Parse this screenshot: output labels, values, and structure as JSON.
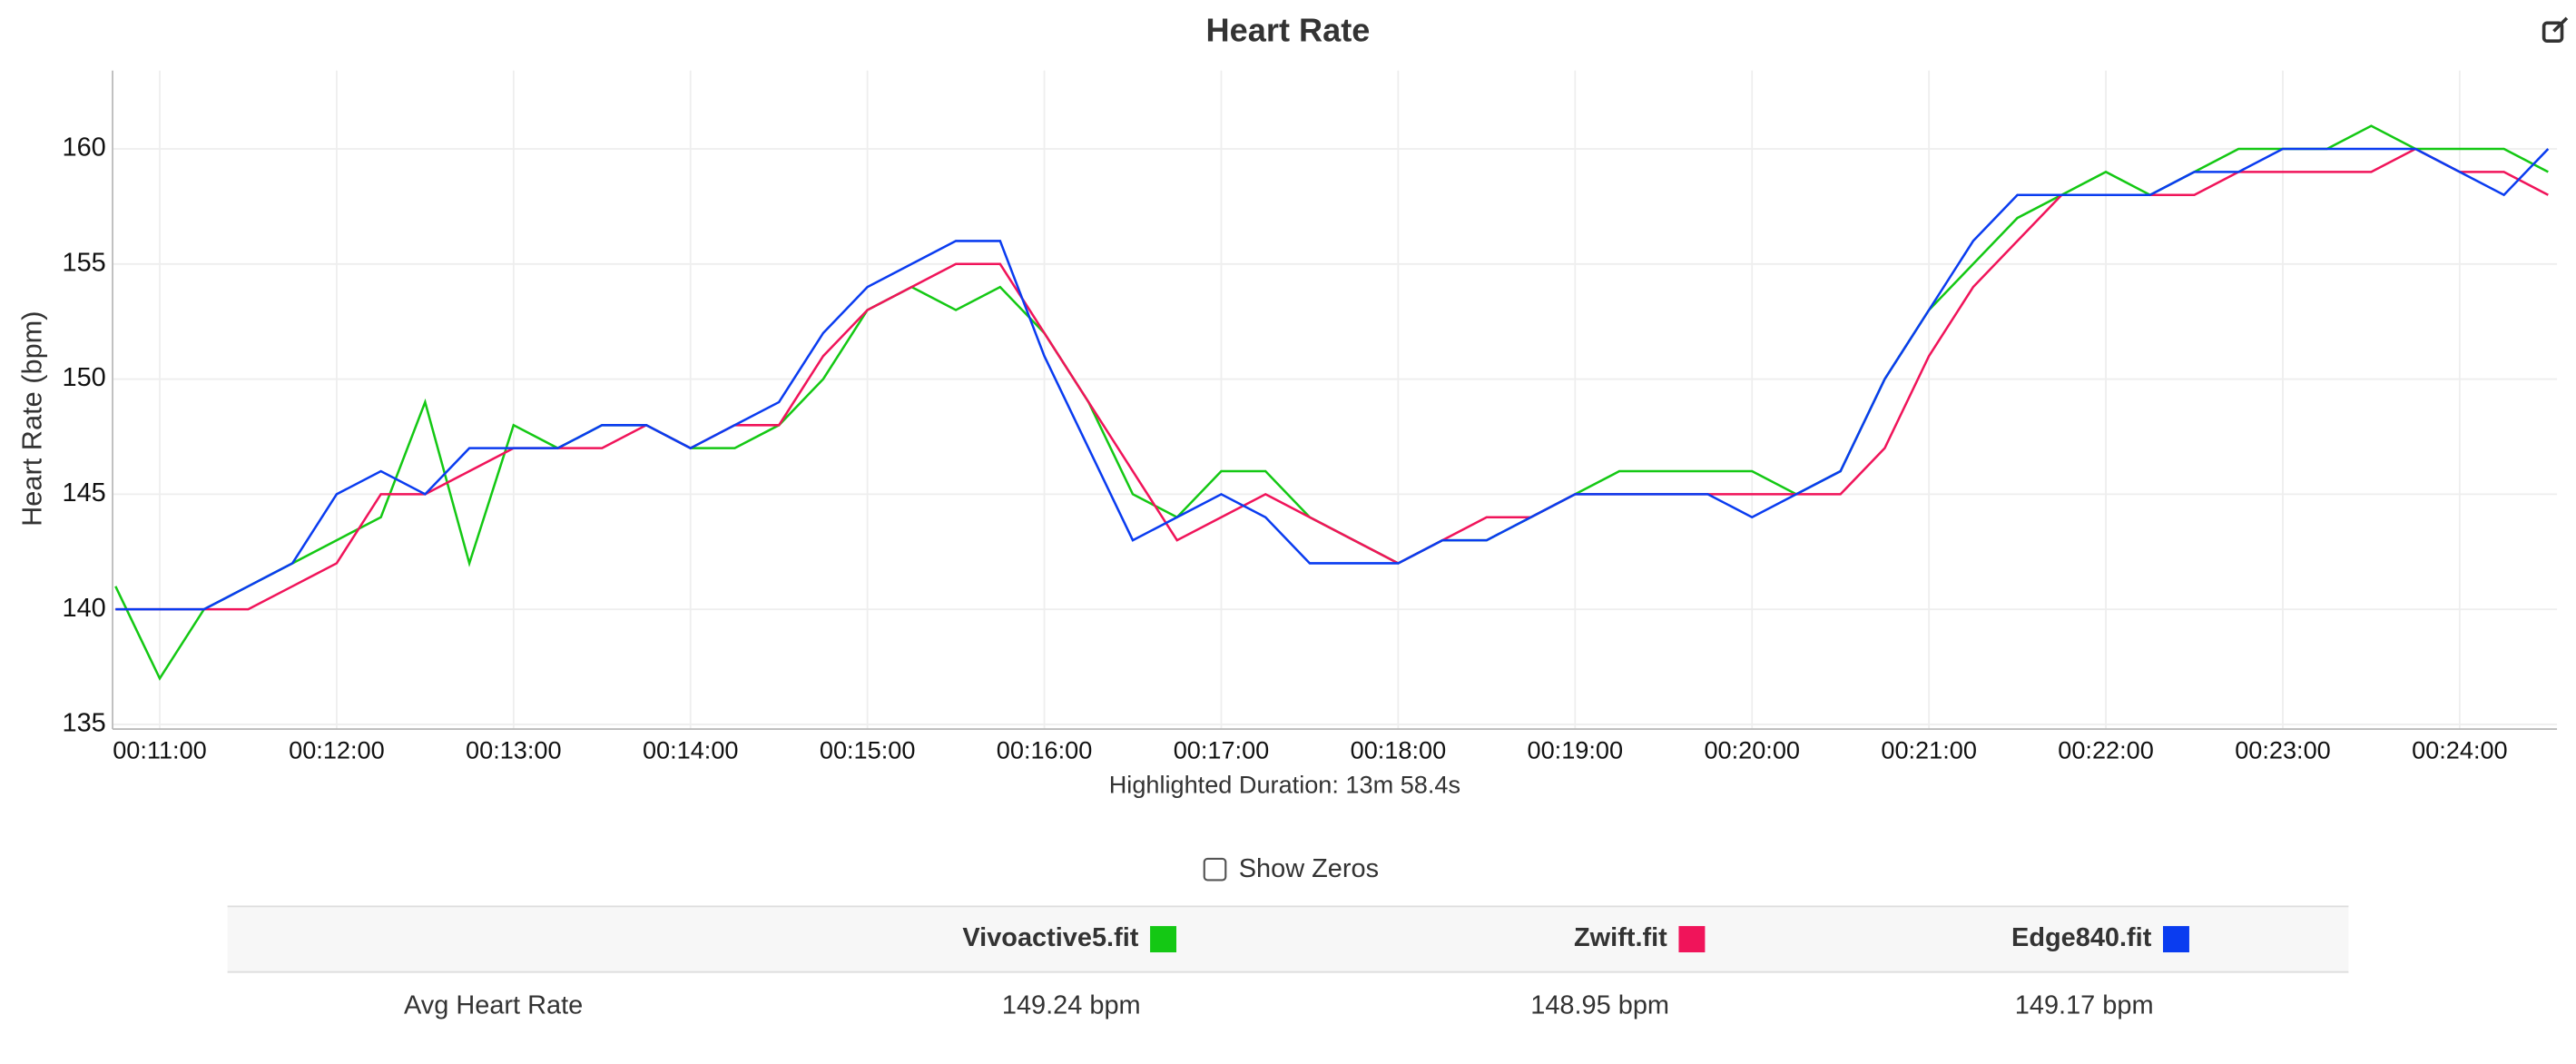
{
  "chart_data": {
    "type": "line",
    "title": "Heart Rate",
    "ylabel": "Heart Rate (bpm)",
    "xlabel": "Highlighted Duration: 13m 58.4s",
    "x": [
      645,
      660,
      675,
      690,
      705,
      720,
      735,
      750,
      765,
      780,
      795,
      810,
      825,
      840,
      855,
      870,
      885,
      900,
      915,
      930,
      945,
      960,
      975,
      990,
      1005,
      1020,
      1035,
      1050,
      1065,
      1080,
      1095,
      1110,
      1125,
      1140,
      1155,
      1170,
      1185,
      1200,
      1215,
      1230,
      1245,
      1260,
      1275,
      1290,
      1305,
      1320,
      1335,
      1350,
      1365,
      1380,
      1395,
      1410,
      1425,
      1440,
      1455,
      1470
    ],
    "series": [
      {
        "name": "Vivoactive5.fit",
        "color": "#14c814",
        "values": [
          141,
          137,
          140,
          141,
          142,
          143,
          144,
          149,
          142,
          148,
          147,
          148,
          148,
          147,
          147,
          148,
          150,
          153,
          154,
          153,
          154,
          152,
          149,
          145,
          144,
          146,
          146,
          144,
          143,
          142,
          143,
          143,
          144,
          145,
          146,
          146,
          146,
          146,
          145,
          146,
          150,
          153,
          155,
          157,
          158,
          159,
          158,
          159,
          160,
          160,
          160,
          161,
          160,
          160,
          160,
          159
        ]
      },
      {
        "name": "Zwift.fit",
        "color": "#f0145a",
        "values": [
          140,
          140,
          140,
          140,
          141,
          142,
          145,
          145,
          146,
          147,
          147,
          147,
          148,
          147,
          148,
          148,
          151,
          153,
          154,
          155,
          155,
          152,
          149,
          146,
          143,
          144,
          145,
          144,
          143,
          142,
          143,
          144,
          144,
          145,
          145,
          145,
          145,
          145,
          145,
          145,
          147,
          151,
          154,
          156,
          158,
          158,
          158,
          158,
          159,
          159,
          159,
          159,
          160,
          159,
          159,
          158
        ]
      },
      {
        "name": "Edge840.fit",
        "color": "#0a3cf0",
        "values": [
          140,
          140,
          140,
          141,
          142,
          145,
          146,
          145,
          147,
          147,
          147,
          148,
          148,
          147,
          148,
          149,
          152,
          154,
          155,
          156,
          156,
          151,
          147,
          143,
          144,
          145,
          144,
          142,
          142,
          142,
          143,
          143,
          144,
          145,
          145,
          145,
          145,
          144,
          145,
          146,
          150,
          153,
          156,
          158,
          158,
          158,
          158,
          159,
          159,
          160,
          160,
          160,
          160,
          159,
          158,
          160
        ]
      }
    ],
    "xlim": [
      644,
      1473
    ],
    "xticks": [
      {
        "value": 660,
        "label": "00:11:00"
      },
      {
        "value": 720,
        "label": "00:12:00"
      },
      {
        "value": 780,
        "label": "00:13:00"
      },
      {
        "value": 840,
        "label": "00:14:00"
      },
      {
        "value": 900,
        "label": "00:15:00"
      },
      {
        "value": 960,
        "label": "00:16:00"
      },
      {
        "value": 1020,
        "label": "00:17:00"
      },
      {
        "value": 1080,
        "label": "00:18:00"
      },
      {
        "value": 1140,
        "label": "00:19:00"
      },
      {
        "value": 1200,
        "label": "00:20:00"
      },
      {
        "value": 1260,
        "label": "00:21:00"
      },
      {
        "value": 1320,
        "label": "00:22:00"
      },
      {
        "value": 1380,
        "label": "00:23:00"
      },
      {
        "value": 1440,
        "label": "00:24:00"
      }
    ],
    "ylim": [
      134.8,
      163.4
    ],
    "yticks": [
      135,
      140,
      145,
      150,
      155,
      160
    ],
    "grid": true
  },
  "checkbox": "Show Zeros",
  "table": {
    "columns": [
      "Vivoactive5.fit",
      "Zwift.fit",
      "Edge840.fit"
    ],
    "rows": [
      {
        "label": "Avg Heart Rate",
        "values": [
          "149.24 bpm",
          "148.95 bpm",
          "149.17 bpm"
        ]
      }
    ]
  }
}
